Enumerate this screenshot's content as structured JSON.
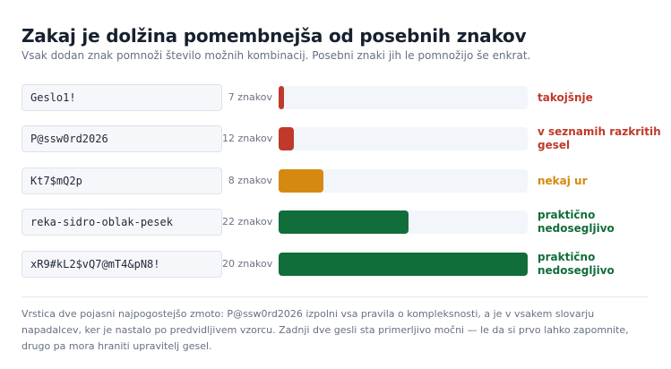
{
  "header": {
    "title": "Zakaj je dolžina pomembnejša od posebnih znakov",
    "subtitle": "Vsak dodan znak pomnoži število možnih kombinacij. Posebni znaki jih le pomnožijo še enkrat."
  },
  "rows": [
    {
      "password": "Geslo1!",
      "length_label": "7 znakov",
      "strength_fraction": 0.02,
      "color": "#c0392b",
      "verdict": "takojšnje"
    },
    {
      "password": "P@ssw0rd2026",
      "length_label": "12 znakov",
      "strength_fraction": 0.06,
      "color": "#c0392b",
      "verdict": "v seznamih razkritih gesel"
    },
    {
      "password": "Kt7$mQ2p",
      "length_label": "8 znakov",
      "strength_fraction": 0.18,
      "color": "#d68910",
      "verdict": "nekaj ur"
    },
    {
      "password": "reka-sidro-oblak-pesek",
      "length_label": "22 znakov",
      "strength_fraction": 0.52,
      "color": "#116d3a",
      "verdict": "praktično nedosegljivo"
    },
    {
      "password": "xR9#kL2$vQ7@mT4&pN8!",
      "length_label": "20 znakov",
      "strength_fraction": 1.0,
      "color": "#116d3a",
      "verdict": "praktično nedosegljivo"
    }
  ],
  "footnote": "Vrstica dve pojasni najpogostejšo zmoto: P@ssw0rd2026 izpolni vsa pravila o kompleksnosti, a je v vsakem slovarju napadalcev, ker je nastalo po predvidljivem vzorcu. Zadnji dve gesli sta primerljivo močni — le da si prvo lahko zapomnite, drugo pa mora hraniti upravitelj gesel."
}
